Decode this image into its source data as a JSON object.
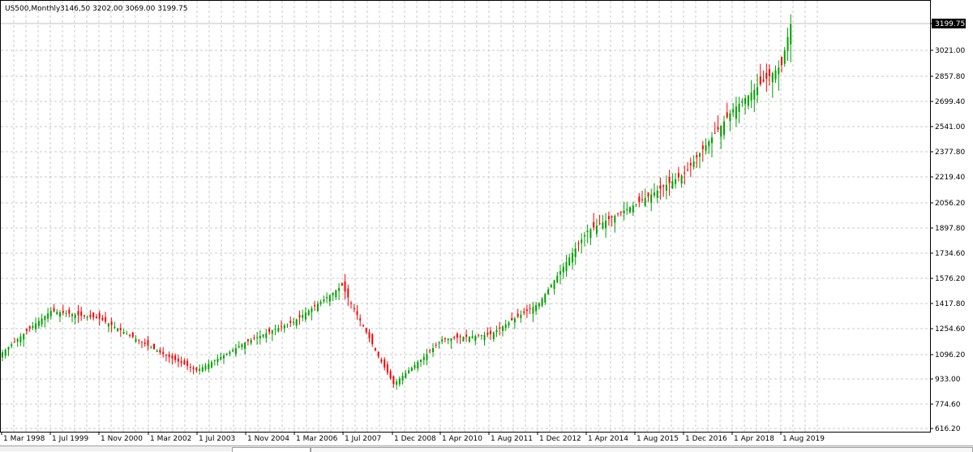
{
  "chart_header": {
    "symbol_timeframe": "US500,Monthly",
    "ohlc": "3146,50 3202.00 3069.00 3199.75"
  },
  "current_price": "3199.75",
  "colors": {
    "up": "#00a000",
    "down": "#ff0000",
    "grid": "#c8c8c8",
    "frame": "#000000"
  },
  "chart_data": {
    "type": "candlestick",
    "title": "",
    "y_axis_labels": [
      "3199.75",
      "3021.00",
      "2857.80",
      "2699.40",
      "2541.00",
      "2377.80",
      "2219.40",
      "2056.20",
      "1897.80",
      "1734.60",
      "1576.20",
      "1417.80",
      "1254.60",
      "1096.20",
      "933.00",
      "774.60",
      "616.20"
    ],
    "x_axis_labels": [
      "1 Mar 1998",
      "1 Jul 1999",
      "1 Nov 2000",
      "1 Mar 2002",
      "1 Jul 2003",
      "1 Nov 2004",
      "1 Mar 2006",
      "1 Jul 2007",
      "1 Dec 2008",
      "1 Apr 2010",
      "1 Aug 2011",
      "1 Dec 2012",
      "1 Apr 2014",
      "1 Aug 2015",
      "1 Dec 2016",
      "1 Apr 2018",
      "1 Aug 2019"
    ],
    "y_range": [
      616.2,
      3230
    ],
    "series": [
      {
        "x": [
          "Mar 1998",
          "Jul 1999",
          "Nov 2000",
          "Mar 2002",
          "Jul 2003",
          "Nov 2004",
          "Mar 2006",
          "Jul 2007",
          "Dec 2008",
          "Apr 2010",
          "Aug 2011",
          "Dec 2012",
          "Apr 2014",
          "Aug 2015",
          "Dec 2016",
          "Apr 2018",
          "Aug 2019",
          "Nov 2019"
        ],
        "close": [
          1110,
          1370,
          1320,
          1150,
          990,
          1170,
          1300,
          1530,
          900,
          1190,
          1220,
          1420,
          1880,
          2050,
          2240,
          2650,
          2930,
          3199.75
        ]
      }
    ]
  }
}
